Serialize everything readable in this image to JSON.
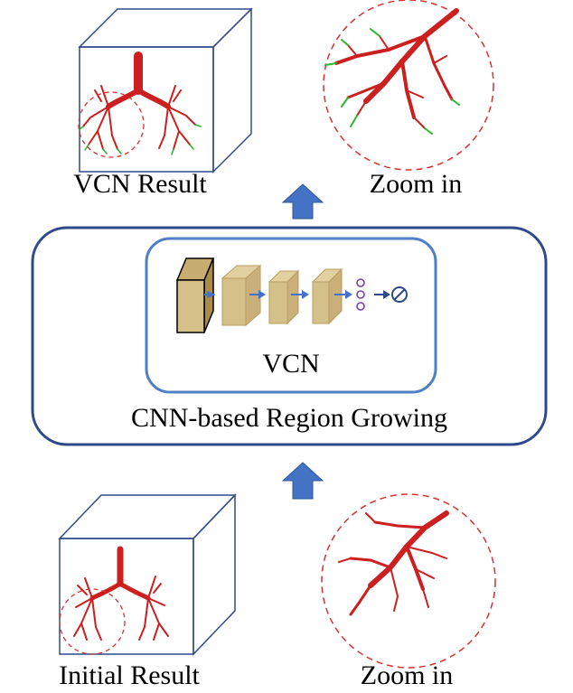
{
  "top": {
    "result_label": "VCN Result",
    "zoom_label": "Zoom in"
  },
  "middle": {
    "network_label": "VCN",
    "module_label": "CNN-based Region Growing"
  },
  "bottom": {
    "result_label": "Initial Result",
    "zoom_label": "Zoom in"
  },
  "colors": {
    "frame": "#2f4a8a",
    "inner_frame": "#4f7fc4",
    "arrow": "#4472c4",
    "airway": "#cc1f1f",
    "airway_grown": "#2db52d",
    "layer_fill": "#d6c08a",
    "layer_dark": "#b89d5e",
    "zoom_circle": "#d93030",
    "output_dots": "#7a3fa0"
  },
  "icons": {
    "up_arrow": "arrow-up-icon",
    "small_arrow": "arrow-right-icon",
    "output": "output-circle-icon"
  }
}
